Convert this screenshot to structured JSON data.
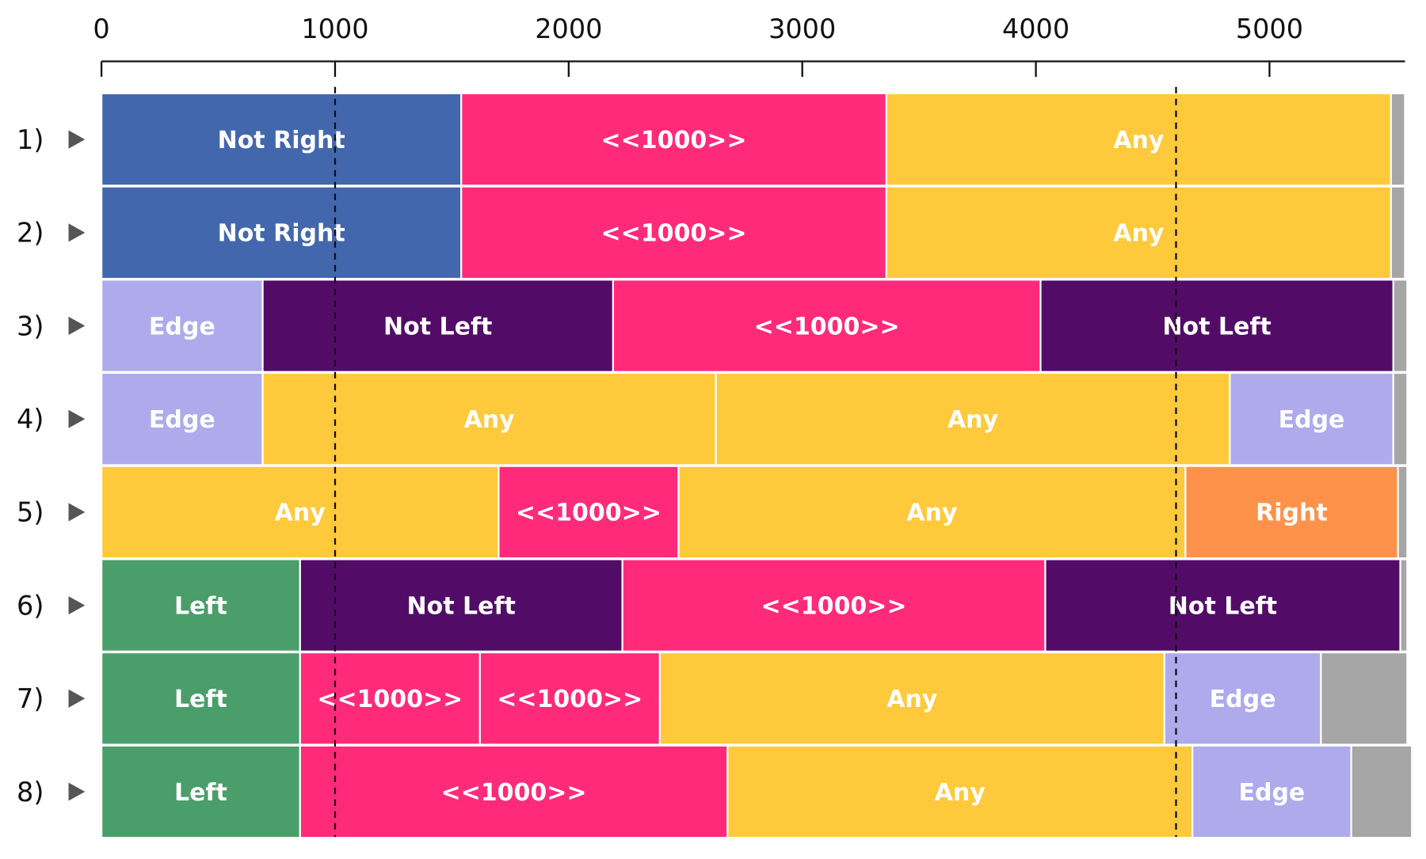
{
  "chart_data": {
    "type": "stacked-bar",
    "xlim": [
      0,
      5580
    ],
    "xticks": [
      0,
      1000,
      2000,
      3000,
      4000,
      5000
    ],
    "reference_lines": [
      1000,
      4600
    ],
    "rows": [
      {
        "label": "1)",
        "segments": [
          {
            "label": "Not Right",
            "value": 1540,
            "color": "#4367ad"
          },
          {
            "label": "<<1000>>",
            "value": 1820,
            "color": "#ff2a7a"
          },
          {
            "label": "Any",
            "value": 2160,
            "color": "#fec93b"
          },
          {
            "value": 60,
            "color": "#a6a6a6"
          }
        ]
      },
      {
        "label": "2)",
        "segments": [
          {
            "label": "Not Right",
            "value": 1540,
            "color": "#4367ad"
          },
          {
            "label": "<<1000>>",
            "value": 1820,
            "color": "#ff2a7a"
          },
          {
            "label": "Any",
            "value": 2160,
            "color": "#fec93b"
          },
          {
            "value": 60,
            "color": "#a6a6a6"
          }
        ]
      },
      {
        "label": "3)",
        "segments": [
          {
            "label": "Edge",
            "value": 690,
            "color": "#aeaaec"
          },
          {
            "label": "Not Left",
            "value": 1500,
            "color": "#520c68"
          },
          {
            "label": "<<1000>>",
            "value": 1830,
            "color": "#ff2a7a"
          },
          {
            "label": "Not Left",
            "value": 1510,
            "color": "#520c68"
          },
          {
            "value": 60,
            "color": "#a6a6a6"
          }
        ]
      },
      {
        "label": "4)",
        "segments": [
          {
            "label": "Edge",
            "value": 690,
            "color": "#aeaaec"
          },
          {
            "label": "Any",
            "value": 1940,
            "color": "#fec93b"
          },
          {
            "label": "Any",
            "value": 2200,
            "color": "#fec93b"
          },
          {
            "label": "Edge",
            "value": 700,
            "color": "#aeaaec"
          },
          {
            "value": 60,
            "color": "#a6a6a6"
          }
        ]
      },
      {
        "label": "5)",
        "segments": [
          {
            "label": "Any",
            "value": 1700,
            "color": "#fec93b"
          },
          {
            "label": "<<1000>>",
            "value": 770,
            "color": "#ff2a7a"
          },
          {
            "label": "Any",
            "value": 2170,
            "color": "#fec93b"
          },
          {
            "label": "Right",
            "value": 910,
            "color": "#ff924a"
          },
          {
            "value": 40,
            "color": "#a6a6a6"
          }
        ]
      },
      {
        "label": "6)",
        "segments": [
          {
            "label": "Left",
            "value": 850,
            "color": "#4a9e69"
          },
          {
            "label": "Not Left",
            "value": 1380,
            "color": "#520c68"
          },
          {
            "label": "<<1000>>",
            "value": 1810,
            "color": "#ff2a7a"
          },
          {
            "label": "Not Left",
            "value": 1520,
            "color": "#520c68"
          },
          {
            "value": 30,
            "color": "#a6a6a6"
          }
        ]
      },
      {
        "label": "7)",
        "segments": [
          {
            "label": "Left",
            "value": 850,
            "color": "#4a9e69"
          },
          {
            "label": "<<1000>>",
            "value": 770,
            "color": "#ff2a7a"
          },
          {
            "label": "<<1000>>",
            "value": 770,
            "color": "#ff2a7a"
          },
          {
            "label": "Any",
            "value": 2160,
            "color": "#fec93b"
          },
          {
            "label": "Edge",
            "value": 670,
            "color": "#aeaaec"
          },
          {
            "value": 370,
            "color": "#a6a6a6"
          }
        ]
      },
      {
        "label": "8)",
        "segments": [
          {
            "label": "Left",
            "value": 850,
            "color": "#4a9e69"
          },
          {
            "label": "<<1000>>",
            "value": 1830,
            "color": "#ff2a7a"
          },
          {
            "label": "Any",
            "value": 1990,
            "color": "#fec93b"
          },
          {
            "label": "Edge",
            "value": 680,
            "color": "#aeaaec"
          },
          {
            "value": 260,
            "color": "#a6a6a6"
          }
        ]
      }
    ]
  }
}
